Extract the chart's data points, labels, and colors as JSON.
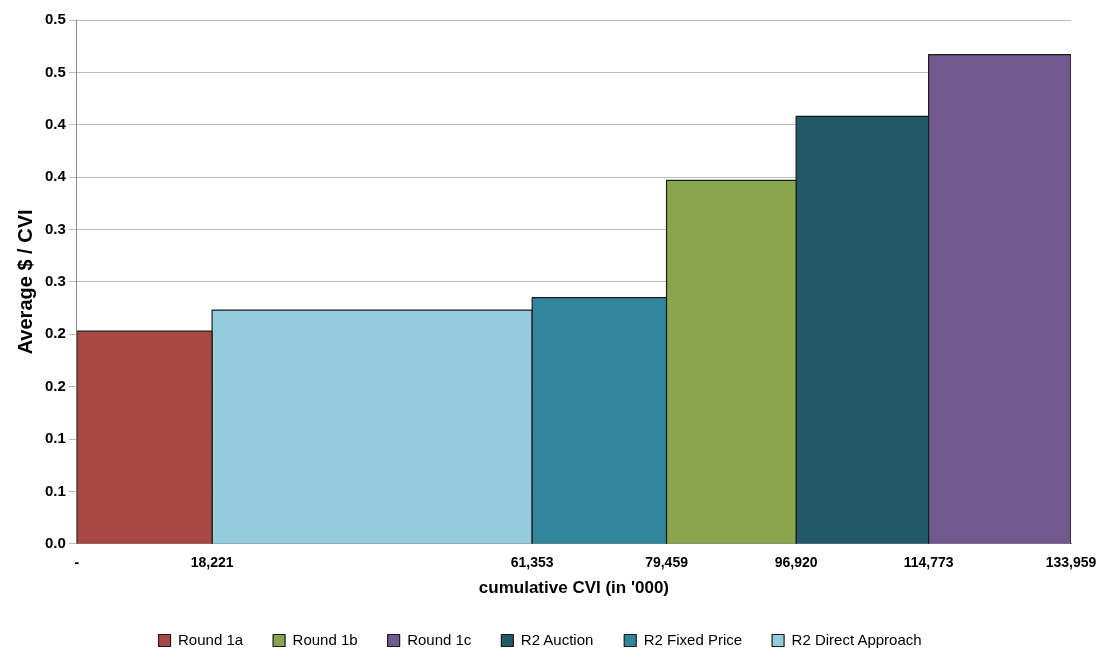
{
  "chart_data": {
    "type": "histogram",
    "xlabel": "cumulative CVI (in '000)",
    "ylabel": "Average $ / CVI",
    "bins": [
      0,
      18221,
      61353,
      79459,
      96920,
      114773,
      133959
    ],
    "series": [
      {
        "name": "Round 1a",
        "color": "#a84845",
        "values": [
          0.203,
          null,
          null,
          null,
          null,
          null
        ]
      },
      {
        "name": "Round 1b",
        "color": "#89a54e",
        "values": [
          null,
          null,
          null,
          0.347,
          null,
          null
        ]
      },
      {
        "name": "Round 1c",
        "color": "#71588f",
        "values": [
          null,
          null,
          null,
          null,
          null,
          0.467
        ]
      },
      {
        "name": "R2 Auction",
        "color": "#215968",
        "values": [
          null,
          null,
          null,
          null,
          0.408,
          null
        ]
      },
      {
        "name": "R2 Fixed Price",
        "color": "#31859c",
        "values": [
          null,
          null,
          0.235,
          null,
          null,
          null
        ]
      },
      {
        "name": "R2 Direct Approach",
        "color": "#93cddd",
        "values": [
          null,
          0.223,
          null,
          null,
          null,
          null
        ]
      }
    ],
    "xlim": [
      0,
      133959
    ],
    "xticks": [
      {
        "value": 0,
        "label": "-"
      },
      {
        "value": 18221,
        "label": "18,221"
      },
      {
        "value": 61353,
        "label": "61,353"
      },
      {
        "value": 79459,
        "label": "79,459"
      },
      {
        "value": 96920,
        "label": "96,920"
      },
      {
        "value": 114773,
        "label": "114,773"
      },
      {
        "value": 133959,
        "label": "133,959"
      }
    ],
    "ylim": [
      0,
      0.5
    ],
    "yticks": [
      {
        "value": 0,
        "label": "0.0"
      },
      {
        "value": 0.05,
        "label": "0.1"
      },
      {
        "value": 0.1,
        "label": "0.1"
      },
      {
        "value": 0.15,
        "label": "0.2"
      },
      {
        "value": 0.2,
        "label": "0.2"
      },
      {
        "value": 0.25,
        "label": "0.3"
      },
      {
        "value": 0.3,
        "label": "0.3"
      },
      {
        "value": 0.35,
        "label": "0.4"
      },
      {
        "value": 0.4,
        "label": "0.4"
      },
      {
        "value": 0.45,
        "label": "0.5"
      },
      {
        "value": 0.5,
        "label": "0.5"
      }
    ],
    "grid": "y",
    "legend": "bottom"
  }
}
